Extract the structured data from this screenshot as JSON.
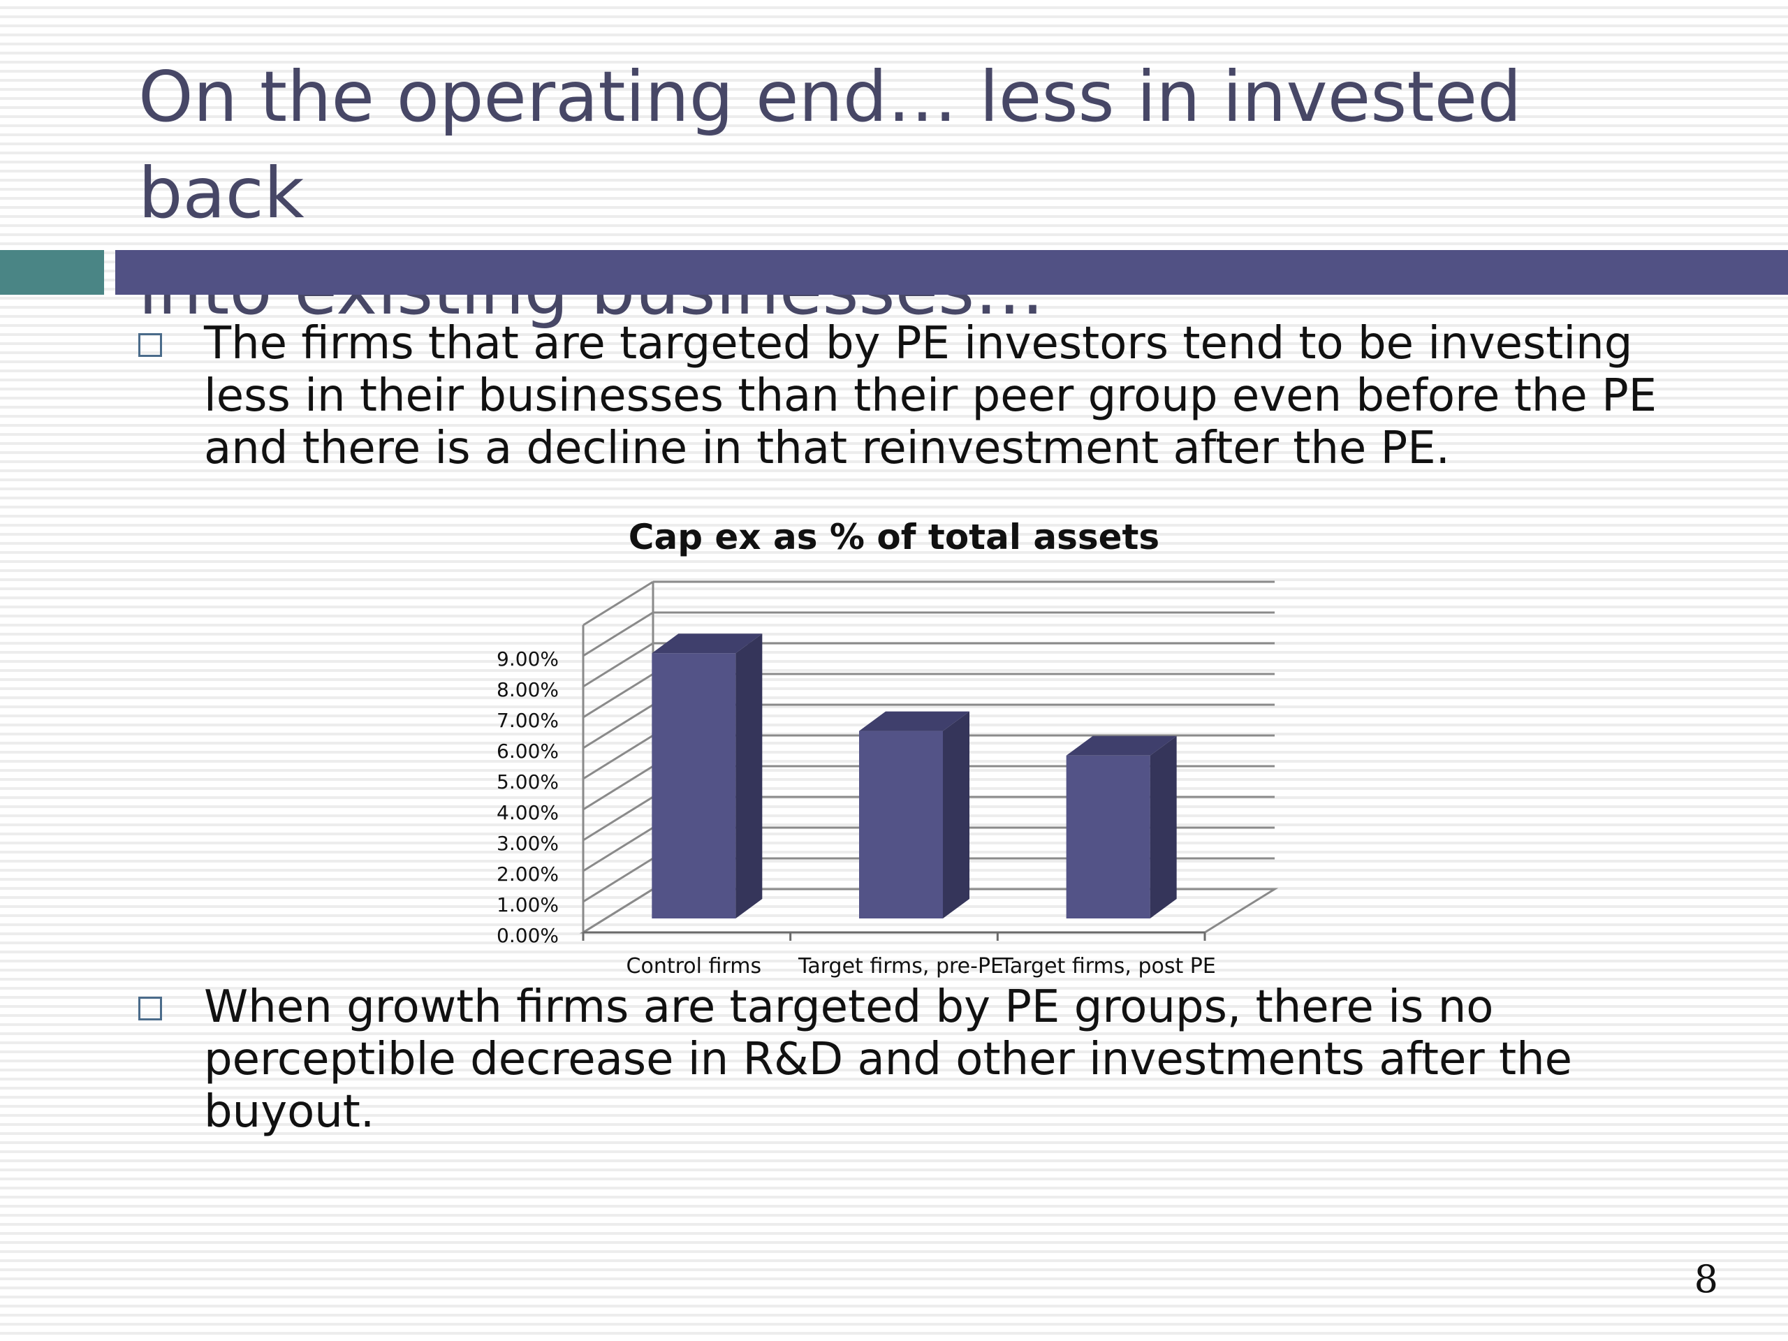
{
  "slide": {
    "title": "On the operating end… less in invested back\ninto existing businesses…",
    "bullets": [
      "The firms that are targeted by PE investors tend to be investing less in  their businesses than their peer group even before the PE and there is a decline in that reinvestment after the PE.",
      "When growth firms are targeted by PE groups, there is no perceptible decrease in R&D and other investments after the buyout."
    ],
    "page_number": "8"
  },
  "colors": {
    "title": "#474766",
    "accent_teal": "#4a8585",
    "accent_purple": "#515184",
    "bar_front": "#535387",
    "bar_side": "#35355a",
    "bar_top": "#3f3f6c"
  },
  "chart_data": {
    "type": "bar",
    "title": "Cap ex as % of total assets",
    "categories": [
      "Control firms",
      "Target firms, pre-PE",
      "Target firms, post PE"
    ],
    "values": [
      0.0863,
      0.061,
      0.053
    ],
    "ylim": [
      0,
      0.1
    ],
    "yticks": [
      "0.00%",
      "1.00%",
      "2.00%",
      "3.00%",
      "4.00%",
      "5.00%",
      "6.00%",
      "7.00%",
      "8.00%",
      "9.00%"
    ],
    "grid": true,
    "legend": false,
    "style": "3d-column"
  }
}
